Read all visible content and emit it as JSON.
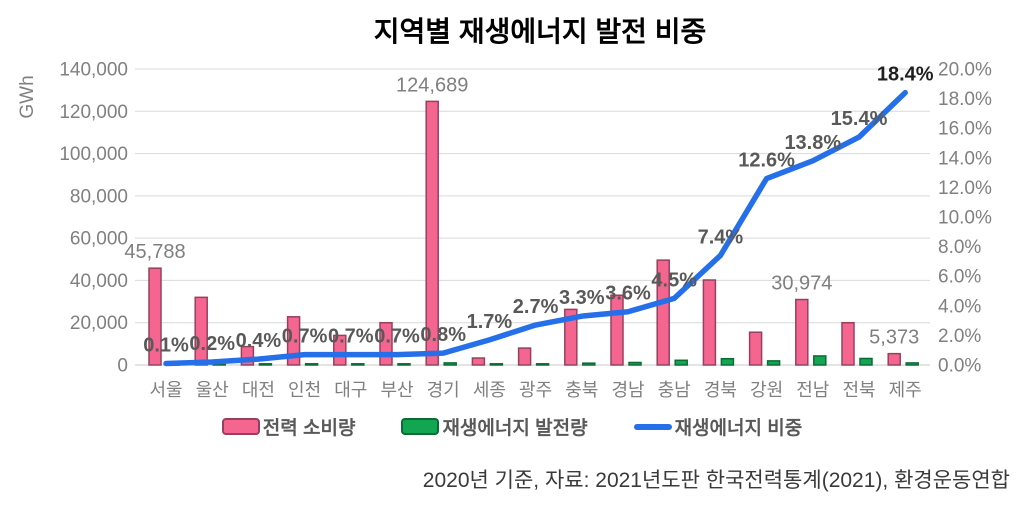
{
  "title": "지역별 재생에너지 발전 비중",
  "footer": "2020년 기준, 자료: 2021년도판 한국전력통계(2021), 환경운동연합",
  "legend": {
    "consumption": "전력 소비량",
    "generation": "재생에너지 발전량",
    "share": "재생에너지 비중"
  },
  "colors": {
    "consumption_fill": "#F4668F",
    "consumption_border": "#96405E",
    "generation_fill": "#12A653",
    "generation_border": "#0B6B35",
    "share_line": "#2570E8",
    "grid": "#D9D9D9",
    "baseline": "#C9C9C9",
    "axis_text": "#808080",
    "value_label": "#7F7F7F",
    "pct_label": "#595959",
    "pct_label_last": "#1F1F1F"
  },
  "chart_data": {
    "type": "bar",
    "subtype": "grouped-bar-with-line",
    "title": "지역별 재생에너지 발전 비중",
    "grid": true,
    "legend_position": "bottom",
    "categories": [
      "서울",
      "울산",
      "대전",
      "인천",
      "대구",
      "부산",
      "경기",
      "세종",
      "광주",
      "충북",
      "경남",
      "충남",
      "경북",
      "강원",
      "전남",
      "전북",
      "제주"
    ],
    "series": [
      {
        "name": "전력 소비량",
        "type": "bar",
        "axis": "left",
        "values": [
          45788,
          32000,
          8700,
          22800,
          14000,
          20000,
          124689,
          3300,
          8000,
          26300,
          33000,
          49600,
          40200,
          15500,
          30974,
          20000,
          5373
        ]
      },
      {
        "name": "재생에너지 발전량",
        "type": "bar",
        "axis": "left",
        "values": [
          46,
          64,
          35,
          160,
          98,
          140,
          997,
          56,
          216,
          868,
          1188,
          2232,
          2975,
          1953,
          4274,
          3080,
          989
        ]
      },
      {
        "name": "재생에너지 비중",
        "type": "line",
        "axis": "right",
        "values": [
          0.1,
          0.2,
          0.4,
          0.7,
          0.7,
          0.7,
          0.8,
          1.7,
          2.7,
          3.3,
          3.6,
          4.5,
          7.4,
          12.6,
          13.8,
          15.4,
          18.4
        ]
      }
    ],
    "pct_labels": [
      "0.1%",
      "0.2%",
      "0.4%",
      "0.7%",
      "0.7%",
      "0.7%",
      "0.8%",
      "1.7%",
      "2.7%",
      "3.3%",
      "3.6%",
      "4.5%",
      "7.4%",
      "12.6%",
      "13.8%",
      "15.4%",
      "18.4%"
    ],
    "bar_value_labels": {
      "0": "45,788",
      "6": "124,689",
      "14": "30,974",
      "16": "5,373"
    },
    "left_axis": {
      "label": "GWh",
      "min": 0,
      "max": 140000,
      "ticks": [
        "140,000",
        "120,000",
        "100,000",
        "80,000",
        "60,000",
        "40,000",
        "20,000",
        "0"
      ]
    },
    "right_axis": {
      "min": 0,
      "max": 20,
      "ticks": [
        "20.0%",
        "18.0%",
        "16.0%",
        "14.0%",
        "12.0%",
        "10.0%",
        "8.0%",
        "6.0%",
        "4.0%",
        "2.0%",
        "0.0%"
      ]
    }
  }
}
